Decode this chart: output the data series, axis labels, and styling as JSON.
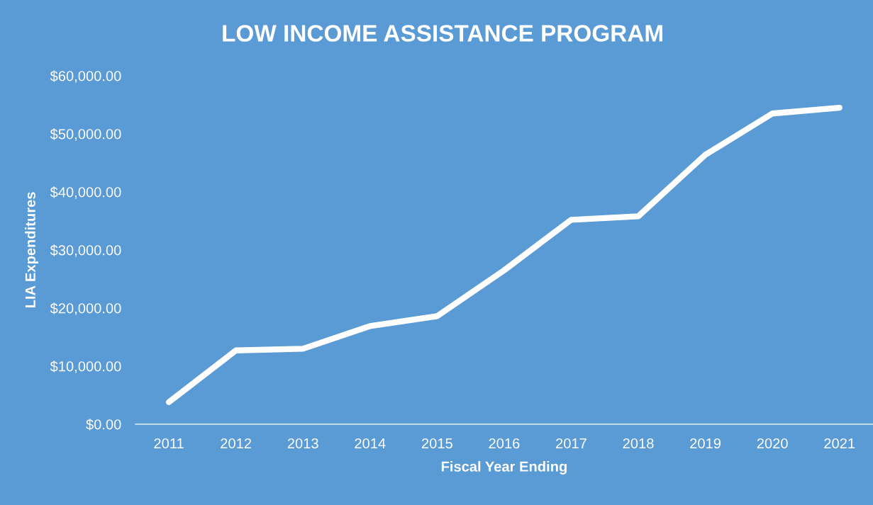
{
  "chart_data": {
    "type": "line",
    "title": "LOW INCOME ASSISTANCE PROGRAM",
    "xlabel": "Fiscal Year Ending",
    "ylabel": "LIA Expenditures",
    "categories": [
      "2011",
      "2012",
      "2013",
      "2014",
      "2015",
      "2016",
      "2017",
      "2018",
      "2019",
      "2020",
      "2021"
    ],
    "series": [
      {
        "color": "#ffffff",
        "values": [
          3800,
          12700,
          13000,
          16900,
          18600,
          26500,
          35200,
          35800,
          46400,
          53500,
          54500
        ]
      }
    ],
    "ylim": [
      0,
      60000
    ],
    "yticks": [
      {
        "value": 0,
        "label": "$0.00"
      },
      {
        "value": 10000,
        "label": "$10,000.00"
      },
      {
        "value": 20000,
        "label": "$20,000.00"
      },
      {
        "value": 30000,
        "label": "$30,000.00"
      },
      {
        "value": 40000,
        "label": "$40,000.00"
      },
      {
        "value": 50000,
        "label": "$50,000.00"
      },
      {
        "value": 60000,
        "label": "$60,000.00"
      }
    ],
    "grid": false,
    "legend": false,
    "marker": "none",
    "line_style": "solid"
  }
}
